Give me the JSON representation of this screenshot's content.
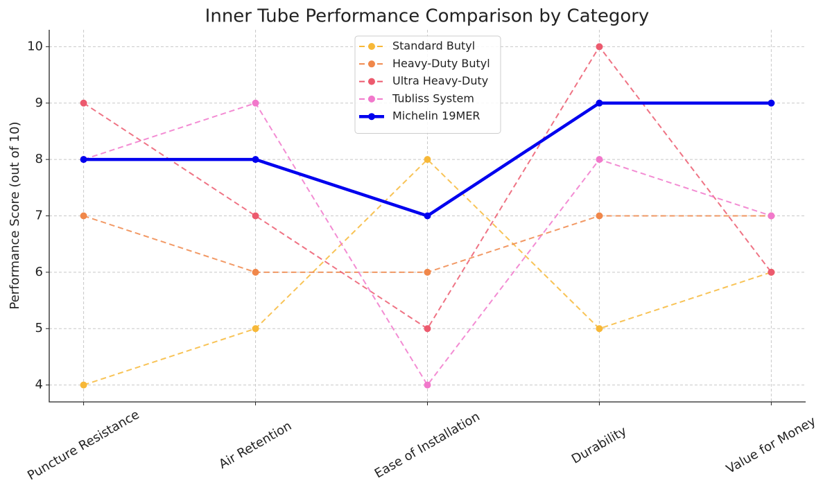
{
  "chart_data": {
    "type": "line",
    "title": "Inner Tube Performance Comparison by Category",
    "y_label": "Performance Score (out of 10)",
    "categories": [
      "Puncture Resistance",
      "Air Retention",
      "Ease of Installation",
      "Durability",
      "Value for Money"
    ],
    "series": [
      {
        "name": "Standard Butyl",
        "color": "#f7b838",
        "linestyle": "dashed",
        "linewidth": 2,
        "values": [
          4,
          5,
          8,
          5,
          6
        ]
      },
      {
        "name": "Heavy-Duty Butyl",
        "color": "#f0874a",
        "linestyle": "dashed",
        "linewidth": 2,
        "values": [
          7,
          6,
          6,
          7,
          7
        ]
      },
      {
        "name": "Ultra Heavy-Duty",
        "color": "#ec5a6e",
        "linestyle": "dashed",
        "linewidth": 2,
        "values": [
          9,
          7,
          5,
          10,
          6
        ]
      },
      {
        "name": "Tubliss System",
        "color": "#f178cb",
        "linestyle": "dashed",
        "linewidth": 2,
        "values": [
          8,
          9,
          4,
          8,
          7
        ]
      },
      {
        "name": "Michelin 19MER",
        "color": "#0000ee",
        "linestyle": "solid",
        "linewidth": 4.5,
        "values": [
          8,
          8,
          7,
          9,
          9
        ]
      }
    ],
    "ylim": [
      3.7,
      10.3
    ],
    "yticks": [
      4,
      5,
      6,
      7,
      8,
      9,
      10
    ],
    "grid": true,
    "legend": "upper center"
  }
}
